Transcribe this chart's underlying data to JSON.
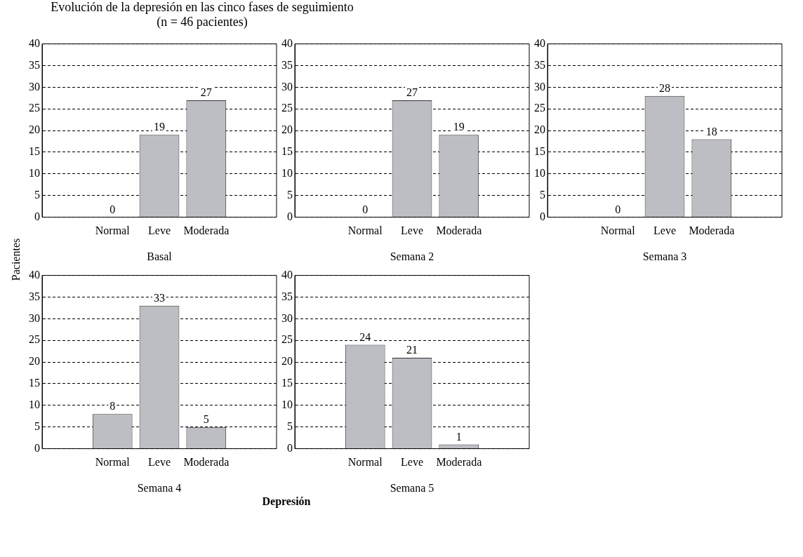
{
  "chart_data": [
    {
      "type": "bar",
      "title": "Evolución de la depresión en las cinco fases de seguimiento\n(n = 46 pacientes)",
      "ylabel": "Pacientes",
      "xlabel": "Basal",
      "categories": [
        null,
        "Normal",
        "Leve",
        "Moderada",
        null
      ],
      "values": [
        null,
        0,
        19,
        27,
        null
      ],
      "color": "#bcbec3",
      "ylim": [
        0,
        40
      ],
      "yticks": [
        0,
        5,
        10,
        15,
        20,
        25,
        30,
        35,
        40
      ],
      "grid": "y",
      "data_labels": true,
      "legend": false
    },
    {
      "type": "bar",
      "xlabel": "Semana 2",
      "categories": [
        null,
        "Normal",
        "Leve",
        "Moderada",
        null
      ],
      "values": [
        null,
        0,
        27,
        19,
        null
      ],
      "color": "#bcbec3",
      "ylim": [
        0,
        40
      ],
      "yticks": [
        0,
        5,
        10,
        15,
        20,
        25,
        30,
        35,
        40
      ],
      "grid": "y",
      "data_labels": true,
      "legend": false
    },
    {
      "type": "bar",
      "xlabel": "Semana 3",
      "categories": [
        null,
        "Normal",
        "Leve",
        "Moderada",
        null
      ],
      "values": [
        null,
        0,
        28,
        18,
        null
      ],
      "color": "#bcbec3",
      "ylim": [
        0,
        40
      ],
      "yticks": [
        0,
        5,
        10,
        15,
        20,
        25,
        30,
        35,
        40
      ],
      "grid": "y",
      "data_labels": true,
      "legend": false
    },
    {
      "type": "bar",
      "xlabel": "Semana 4",
      "categories": [
        null,
        "Normal",
        "Leve",
        "Moderada",
        null
      ],
      "values": [
        null,
        8,
        33,
        5,
        null
      ],
      "color": "#bcbec3",
      "ylim": [
        0,
        40
      ],
      "yticks": [
        0,
        5,
        10,
        15,
        20,
        25,
        30,
        35,
        40
      ],
      "grid": "y",
      "data_labels": true,
      "legend": false
    },
    {
      "type": "bar",
      "xlabel": "Semana 5",
      "annotations": [
        "Depresión"
      ],
      "categories": [
        null,
        "Normal",
        "Leve",
        "Moderada",
        null
      ],
      "values": [
        null,
        24,
        21,
        1,
        null
      ],
      "color": "#bcbec3",
      "ylim": [
        0,
        40
      ],
      "yticks": [
        0,
        5,
        10,
        15,
        20,
        25,
        30,
        35,
        40
      ],
      "grid": "y",
      "data_labels": true,
      "legend": false
    }
  ]
}
